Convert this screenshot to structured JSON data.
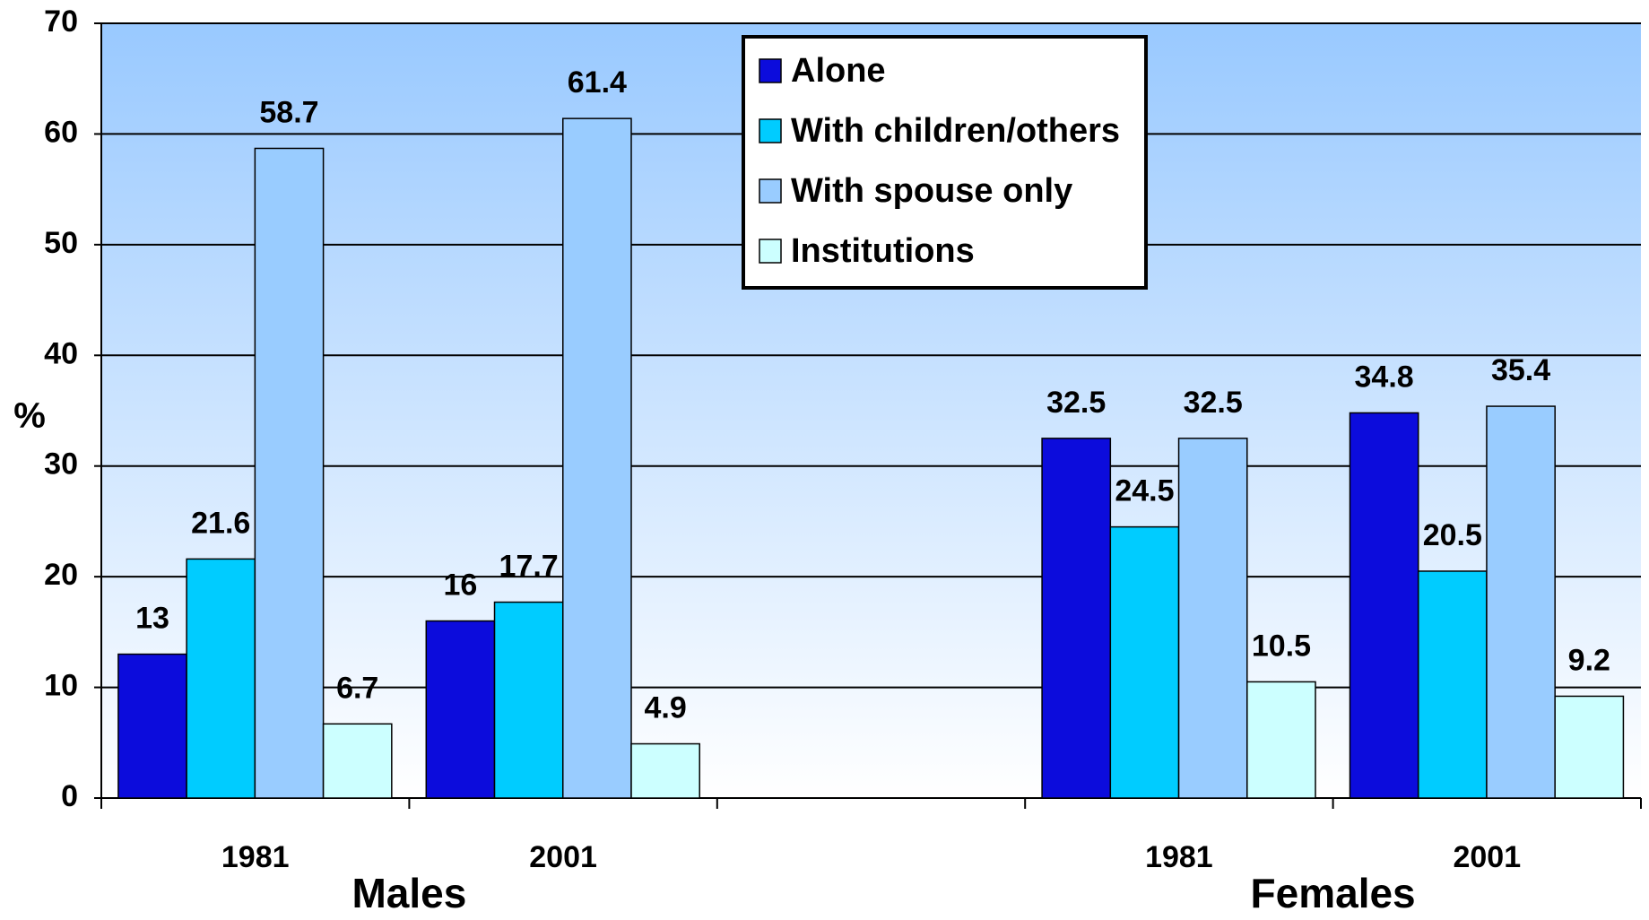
{
  "chart_data": {
    "type": "bar",
    "y_label": "%",
    "categories": [
      "1981",
      "2001",
      null,
      "1981",
      "2001"
    ],
    "group_labels": [
      "Males",
      "Females"
    ],
    "series": [
      {
        "name": "Alone",
        "color": "#0c0cdc",
        "values": [
          13,
          16,
          null,
          32.5,
          34.8
        ]
      },
      {
        "name": "With children/others",
        "color": "#00ccff",
        "values": [
          21.6,
          17.7,
          null,
          24.5,
          20.5
        ]
      },
      {
        "name": "With spouse only",
        "color": "#99ccff",
        "values": [
          58.7,
          61.4,
          null,
          32.5,
          35.4
        ]
      },
      {
        "name": "Institutions",
        "color": "#ccffff",
        "values": [
          6.7,
          4.9,
          null,
          10.5,
          9.2
        ]
      }
    ],
    "ylim": [
      0,
      70
    ],
    "yticks": [
      0,
      10,
      20,
      30,
      40,
      50,
      60,
      70
    ],
    "grid": true,
    "legend": "top"
  }
}
